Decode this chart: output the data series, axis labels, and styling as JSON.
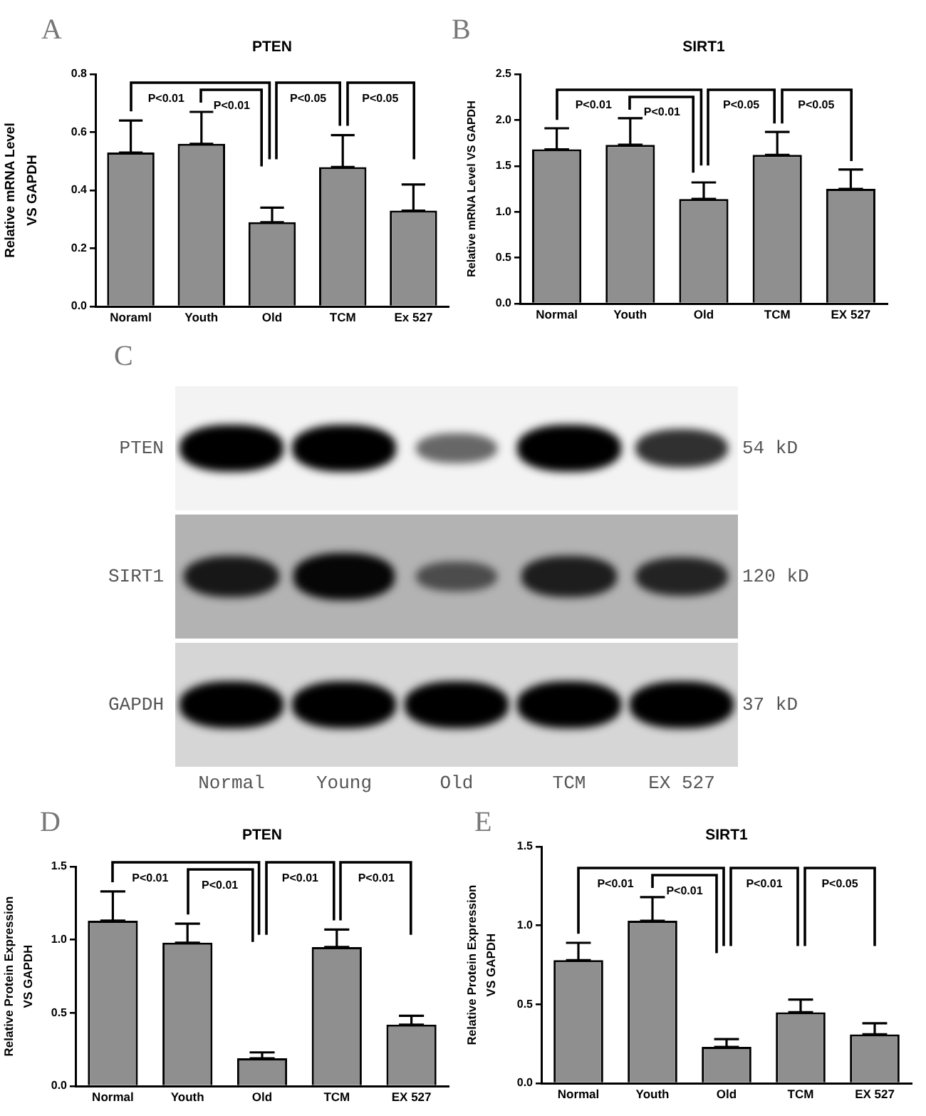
{
  "chart_data": [
    {
      "type": "bar",
      "title": "PTEN",
      "ylabel": "Relative mRNA Level\nVS GAPDH",
      "categories": [
        "Noraml",
        "Youth",
        "Old",
        "TCM",
        "Ex 527"
      ],
      "values": [
        0.53,
        0.56,
        0.29,
        0.48,
        0.33
      ],
      "errors": [
        [
          0.53,
          0.64
        ],
        [
          0.56,
          0.67
        ],
        [
          0.29,
          0.34
        ],
        [
          0.48,
          0.59
        ],
        [
          0.33,
          0.42
        ]
      ],
      "color": "#8f8f8f",
      "ylim": [
        0,
        0.8
      ],
      "yticks": [
        {
          "value": 0,
          "label": "0.0"
        },
        0.2,
        0.4,
        0.6,
        0.8
      ],
      "annotations": [
        "A",
        "P<0.01",
        "P<0.01",
        "P<0.05",
        "P<0.05"
      ]
    },
    {
      "type": "bar",
      "title": "SIRT1",
      "ylabel": "Relative mRNA Level VS GAPDH",
      "categories": [
        "Normal",
        "Youth",
        "Old",
        "TCM",
        "EX 527"
      ],
      "values": [
        1.68,
        1.73,
        1.14,
        1.62,
        1.25
      ],
      "errors": [
        [
          1.68,
          1.91
        ],
        [
          1.73,
          2.02
        ],
        [
          1.14,
          1.32
        ],
        [
          1.62,
          1.87
        ],
        [
          1.25,
          1.46
        ]
      ],
      "color": "#8f8f8f",
      "ylim": [
        0,
        2.5
      ],
      "yticks": [
        {
          "value": 0,
          "label": "0.0"
        },
        0.5,
        {
          "value": 1,
          "label": "1.0"
        },
        1.5,
        {
          "value": 2,
          "label": "2.0"
        },
        2.5
      ],
      "annotations": [
        "B",
        "P<0.01",
        "P<0.01",
        "P<0.05",
        "P<0.05"
      ]
    },
    {
      "type": "other",
      "annotations": [
        "C"
      ],
      "categories": [
        "Normal",
        "Young",
        "Old",
        "TCM",
        "EX 527"
      ],
      "y_categories": [
        "PTEN",
        "SIRT1",
        "GAPDH"
      ],
      "y2_categories": [
        "54 kD",
        "120 kD",
        "37 kD"
      ]
    },
    {
      "type": "bar",
      "title": "PTEN",
      "ylabel": "Relative Protein Expression\nVS GAPDH",
      "categories": [
        "Normal",
        "Youth",
        "Old",
        "TCM",
        "EX 527"
      ],
      "values": [
        1.13,
        0.98,
        0.19,
        0.95,
        0.42
      ],
      "errors": [
        [
          1.13,
          1.33
        ],
        [
          0.98,
          1.11
        ],
        [
          0.19,
          0.23
        ],
        [
          0.95,
          1.07
        ],
        [
          0.42,
          0.48
        ]
      ],
      "color": "#8f8f8f",
      "ylim": [
        0,
        1.5
      ],
      "yticks": [
        {
          "value": 0,
          "label": "0.0"
        },
        0.5,
        {
          "value": 1,
          "label": "1.0"
        },
        1.5
      ],
      "annotations": [
        "D",
        "P<0.01",
        "P<0.01",
        "P<0.01",
        "P<0.01"
      ]
    },
    {
      "type": "bar",
      "title": "SIRT1",
      "ylabel": "Relative Protein Expression\nVS GAPDH",
      "categories": [
        "Normal",
        "Youth",
        "Old",
        "TCM",
        "EX 527"
      ],
      "values": [
        0.78,
        1.03,
        0.23,
        0.45,
        0.31
      ],
      "errors": [
        [
          0.78,
          0.89
        ],
        [
          1.03,
          1.18
        ],
        [
          0.23,
          0.28
        ],
        [
          0.45,
          0.53
        ],
        [
          0.31,
          0.38
        ]
      ],
      "color": "#8f8f8f",
      "ylim": [
        0,
        1.5
      ],
      "yticks": [
        {
          "value": 0,
          "label": "0.0"
        },
        0.5,
        {
          "value": 1,
          "label": "1.0"
        },
        1.5
      ],
      "annotations": [
        "E",
        "P<0.01",
        "P<0.01",
        "P<0.01",
        "P<0.05"
      ]
    }
  ]
}
